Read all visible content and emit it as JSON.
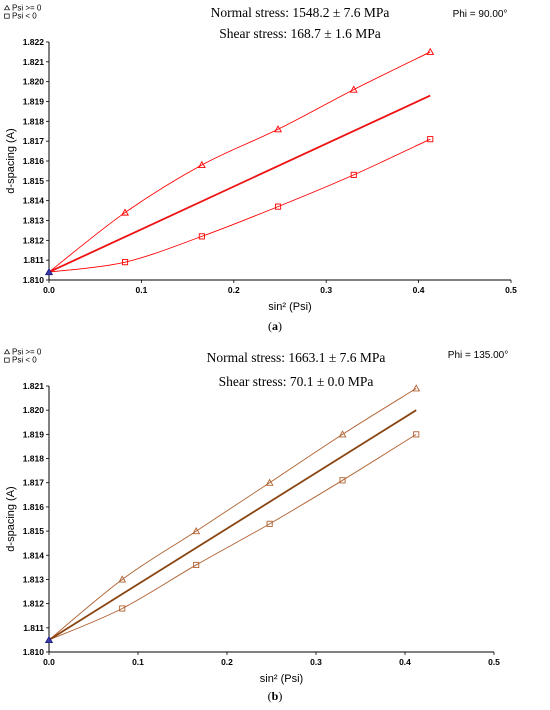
{
  "chart_data": [
    {
      "type": "scatter",
      "caption": {
        "open": "(",
        "letter": "a",
        "close": ")"
      },
      "legend": [
        {
          "marker": "triangle",
          "label": "Psi >= 0"
        },
        {
          "marker": "square",
          "label": "Psi <  0"
        }
      ],
      "annotations": {
        "normal_stress": "Normal stress: 1548.2 ± 7.6 MPa",
        "shear_stress": "Shear stress: 168.7 ± 1.6 MPa",
        "phi": "Phi = 90.00°"
      },
      "xlabel": "sin² (Psi)",
      "ylabel": "d-spacing (A)",
      "xlim": [
        0,
        0.5
      ],
      "ylim": [
        1.81,
        1.822
      ],
      "xticks": [
        "0.0",
        "0.1",
        "0.2",
        "0.3",
        "0.4",
        "0.5"
      ],
      "yticks": [
        "1.810",
        "1.811",
        "1.812",
        "1.813",
        "1.814",
        "1.815",
        "1.816",
        "1.817",
        "1.818",
        "1.819",
        "1.820",
        "1.821",
        "1.822"
      ],
      "color": "#ff0000",
      "fit_color": "#ee1111",
      "origin_point": {
        "x": 0,
        "y": 1.8104
      },
      "series": [
        {
          "name": "Psi >= 0",
          "marker": "triangle",
          "x": [
            0.0,
            0.0823,
            0.1654,
            0.2479,
            0.3298,
            0.4126
          ],
          "y": [
            1.8104,
            1.8134,
            1.8158,
            1.8176,
            1.8196,
            1.8215
          ]
        },
        {
          "name": "Psi <  0",
          "marker": "square",
          "x": [
            0.0,
            0.0823,
            0.1654,
            0.2479,
            0.3298,
            0.4126
          ],
          "y": [
            1.8104,
            1.8109,
            1.8122,
            1.8137,
            1.8153,
            1.8171
          ]
        }
      ],
      "fit_line": {
        "x": [
          0,
          0.4126
        ],
        "y": [
          1.8104,
          1.8193
        ]
      }
    },
    {
      "type": "scatter",
      "caption": {
        "open": "(",
        "letter": "b",
        "close": ")"
      },
      "legend": [
        {
          "marker": "triangle",
          "label": "Psi >= 0"
        },
        {
          "marker": "square",
          "label": "Psi <  0"
        }
      ],
      "annotations": {
        "normal_stress": "Normal stress: 1663.1 ± 7.6 MPa",
        "shear_stress": "Shear stress: 70.1 ± 0.0 MPa",
        "phi": "Phi = 135.00°"
      },
      "xlabel": "sin² (Psi)",
      "ylabel": "d-spacing (A)",
      "xlim": [
        0,
        0.5
      ],
      "ylim": [
        1.81,
        1.821
      ],
      "xticks": [
        "0.0",
        "0.1",
        "0.2",
        "0.3",
        "0.4",
        "0.5"
      ],
      "yticks": [
        "1.810",
        "1.811",
        "1.812",
        "1.813",
        "1.814",
        "1.815",
        "1.816",
        "1.817",
        "1.818",
        "1.819",
        "1.820",
        "1.821"
      ],
      "color": "#b06030",
      "fit_color": "#8b4513",
      "origin_point": {
        "x": 0,
        "y": 1.8105
      },
      "series": [
        {
          "name": "Psi >= 0",
          "marker": "triangle",
          "x": [
            0.0,
            0.0823,
            0.1654,
            0.2479,
            0.3298,
            0.4126
          ],
          "y": [
            1.8105,
            1.813,
            1.815,
            1.817,
            1.819,
            1.8209
          ]
        },
        {
          "name": "Psi <  0",
          "marker": "square",
          "x": [
            0.0,
            0.0823,
            0.1654,
            0.2479,
            0.3298,
            0.4126
          ],
          "y": [
            1.8105,
            1.8118,
            1.8136,
            1.8153,
            1.8171,
            1.819
          ]
        }
      ],
      "fit_line": {
        "x": [
          0,
          0.4126
        ],
        "y": [
          1.8105,
          1.82
        ]
      }
    }
  ]
}
